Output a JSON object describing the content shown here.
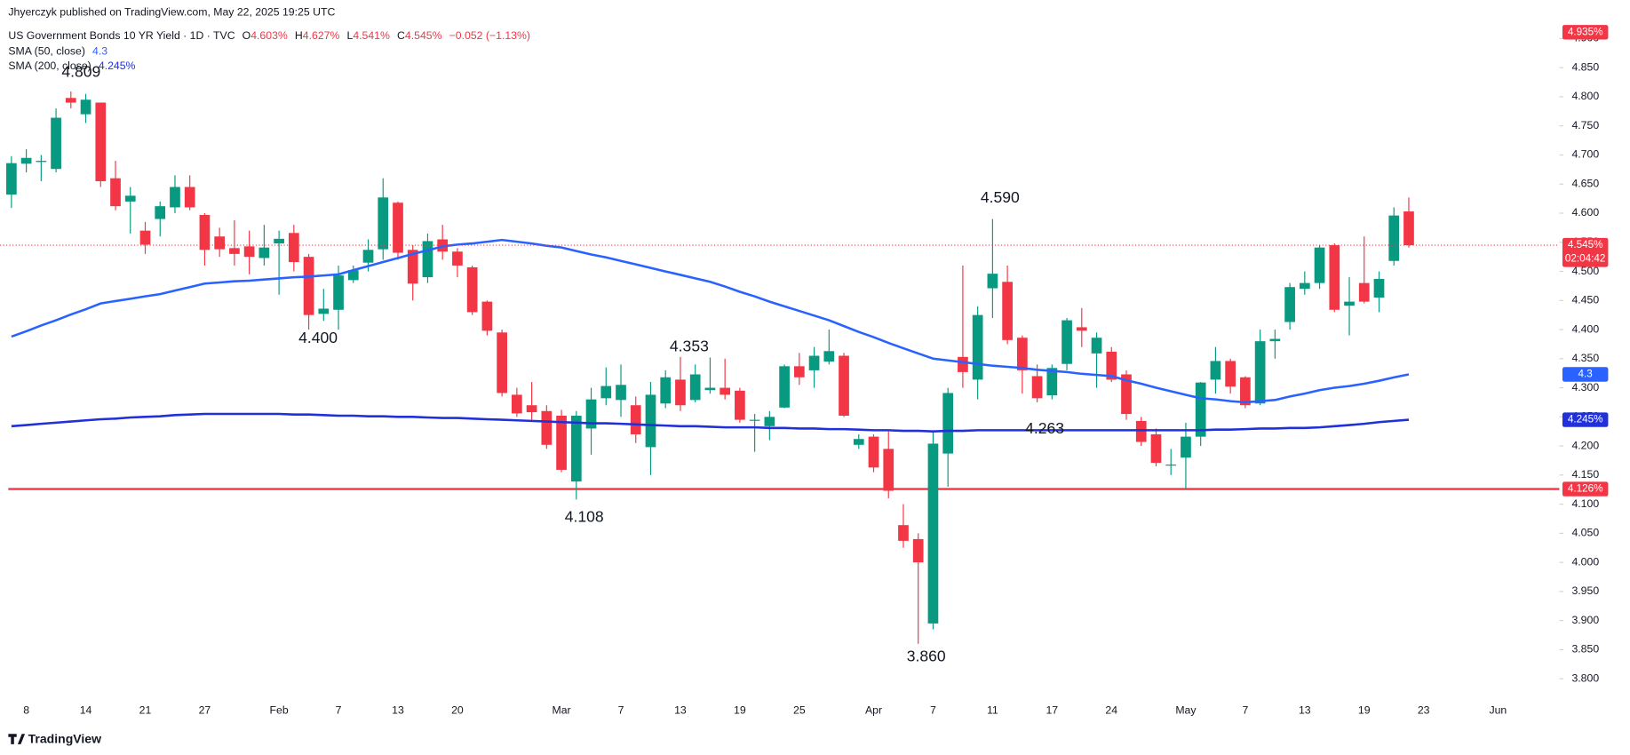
{
  "publisher": "Jhyerczyk published on TradingView.com, May 22, 2025 19:25 UTC",
  "brand": "TradingView",
  "chart_data": {
    "type": "candlestick",
    "title": "US Government Bonds 10 YR Yield · 1D · TVC",
    "ohlc_legend": [
      {
        "key": "O",
        "text": "4.603%"
      },
      {
        "key": "H",
        "text": "4.627%"
      },
      {
        "key": "L",
        "text": "4.541%"
      },
      {
        "key": "C",
        "text": "4.545%"
      }
    ],
    "change": "−0.052 (−1.13%)",
    "categories": [
      null,
      "8",
      null,
      null,
      null,
      "14",
      null,
      null,
      null,
      "21",
      null,
      null,
      null,
      "27",
      null,
      null,
      null,
      null,
      "Feb",
      null,
      null,
      null,
      "7",
      null,
      null,
      null,
      "13",
      null,
      null,
      null,
      "20",
      null,
      null,
      null,
      null,
      null,
      null,
      "Mar",
      null,
      null,
      null,
      "7",
      null,
      null,
      null,
      "13",
      null,
      null,
      null,
      "19",
      null,
      null,
      null,
      "25",
      null,
      null,
      null,
      null,
      "Apr",
      null,
      null,
      null,
      "7",
      null,
      null,
      null,
      "11",
      null,
      null,
      null,
      "17",
      null,
      null,
      null,
      "24",
      null,
      null,
      null,
      null,
      "May",
      null,
      null,
      null,
      "7",
      null,
      null,
      null,
      "13",
      null,
      null,
      null,
      "19",
      null,
      null,
      null,
      "23",
      null,
      null,
      null,
      null,
      "Jun"
    ],
    "open": [
      4.632,
      4.685,
      4.688,
      4.676,
      4.798,
      4.77,
      4.79,
      4.66,
      4.62,
      4.57,
      4.59,
      4.61,
      4.645,
      4.597,
      4.56,
      4.54,
      4.543,
      4.523,
      4.548,
      4.566,
      4.525,
      4.427,
      4.434,
      4.485,
      4.515,
      4.538,
      4.618,
      4.537,
      4.49,
      4.555,
      4.534,
      4.507,
      4.448,
      4.395,
      4.288,
      4.27,
      4.26,
      4.252,
      4.139,
      4.23,
      4.282,
      4.279,
      4.27,
      4.198,
      4.273,
      4.314,
      4.279,
      4.296,
      4.3,
      4.295,
      4.244,
      4.234,
      4.266,
      4.337,
      4.33,
      4.345,
      4.355,
      4.202,
      4.216,
      4.195,
      4.064,
      4.04,
      3.895,
      4.187,
      4.353,
      4.314,
      4.471,
      4.482,
      4.386,
      4.32,
      4.287,
      4.341,
      4.404,
      4.359,
      4.362,
      4.323,
      4.243,
      4.22,
      4.168,
      4.18,
      4.216,
      4.314,
      4.346,
      4.318,
      4.273,
      4.38,
      4.413,
      4.47,
      4.48,
      4.545,
      4.441,
      4.48,
      4.455,
      4.518,
      4.603,
      null,
      null,
      null,
      null,
      null,
      null
    ],
    "high": [
      4.698,
      4.71,
      4.7,
      4.78,
      4.809,
      4.805,
      4.79,
      4.69,
      4.645,
      4.585,
      4.62,
      4.665,
      4.665,
      4.6,
      4.575,
      4.588,
      4.57,
      4.58,
      4.57,
      4.58,
      4.53,
      4.47,
      4.51,
      4.51,
      4.555,
      4.66,
      4.62,
      4.545,
      4.565,
      4.58,
      4.54,
      4.51,
      4.45,
      4.4,
      4.3,
      4.31,
      4.27,
      4.262,
      4.26,
      4.3,
      4.335,
      4.34,
      4.285,
      4.31,
      4.33,
      4.353,
      4.34,
      4.352,
      4.35,
      4.3,
      4.255,
      4.26,
      4.34,
      4.36,
      4.37,
      4.4,
      4.36,
      4.22,
      4.22,
      4.225,
      4.1,
      4.05,
      4.225,
      4.3,
      4.51,
      4.44,
      4.59,
      4.51,
      4.39,
      4.34,
      4.34,
      4.42,
      4.437,
      4.395,
      4.37,
      4.33,
      4.25,
      4.23,
      4.195,
      4.24,
      4.31,
      4.37,
      4.35,
      4.32,
      4.4,
      4.4,
      4.48,
      4.5,
      4.545,
      4.548,
      4.49,
      4.56,
      4.5,
      4.61,
      4.627,
      null,
      null,
      null,
      null,
      null,
      null
    ],
    "low": [
      4.609,
      4.67,
      4.655,
      4.67,
      4.78,
      4.755,
      4.645,
      4.605,
      4.565,
      4.53,
      4.56,
      4.6,
      4.605,
      4.51,
      4.525,
      4.51,
      4.495,
      4.51,
      4.46,
      4.5,
      4.4,
      4.415,
      4.4,
      4.48,
      4.5,
      4.52,
      4.52,
      4.45,
      4.48,
      4.52,
      4.49,
      4.425,
      4.39,
      4.285,
      4.25,
      4.245,
      4.195,
      4.155,
      4.108,
      4.185,
      4.27,
      4.25,
      4.205,
      4.15,
      4.265,
      4.26,
      4.275,
      4.29,
      4.28,
      4.24,
      4.19,
      4.21,
      4.265,
      4.305,
      4.3,
      4.34,
      4.25,
      4.195,
      4.155,
      4.11,
      4.025,
      3.86,
      3.885,
      4.13,
      4.3,
      4.28,
      4.42,
      4.375,
      4.29,
      4.275,
      4.28,
      4.33,
      4.37,
      4.3,
      4.31,
      4.245,
      4.2,
      4.165,
      4.15,
      4.126,
      4.2,
      4.29,
      4.29,
      4.265,
      4.27,
      4.35,
      4.4,
      4.46,
      4.47,
      4.43,
      4.39,
      4.445,
      4.43,
      4.51,
      4.541,
      null,
      null,
      null,
      null,
      null,
      null
    ],
    "close": [
      4.686,
      4.695,
      4.69,
      4.764,
      4.79,
      4.795,
      4.655,
      4.612,
      4.63,
      4.546,
      4.612,
      4.645,
      4.61,
      4.537,
      4.538,
      4.53,
      4.525,
      4.541,
      4.556,
      4.516,
      4.425,
      4.436,
      4.493,
      4.502,
      4.537,
      4.627,
      4.532,
      4.479,
      4.552,
      4.534,
      4.51,
      4.43,
      4.398,
      4.291,
      4.256,
      4.258,
      4.202,
      4.159,
      4.252,
      4.28,
      4.303,
      4.305,
      4.22,
      4.288,
      4.318,
      4.27,
      4.323,
      4.3,
      4.288,
      4.245,
      4.245,
      4.25,
      4.337,
      4.318,
      4.355,
      4.363,
      4.252,
      4.212,
      4.163,
      4.123,
      4.037,
      4.0,
      4.204,
      4.291,
      4.327,
      4.425,
      4.496,
      4.382,
      4.33,
      4.282,
      4.334,
      4.416,
      4.398,
      4.386,
      4.314,
      4.255,
      4.207,
      4.171,
      4.168,
      4.216,
      4.309,
      4.346,
      4.302,
      4.27,
      4.38,
      4.384,
      4.473,
      4.48,
      4.541,
      4.434,
      4.448,
      4.448,
      4.487,
      4.596,
      4.545,
      null,
      null,
      null,
      null,
      null,
      null
    ],
    "last_close_label": "4.545%",
    "countdown": "02:04:42",
    "up_color": "#089981",
    "down_color": "#f23645",
    "series": [
      {
        "name": "SMA (50, close)",
        "color": "#2962ff",
        "last_label": "4.3",
        "values": [
          4.388,
          4.397,
          4.407,
          4.416,
          4.426,
          4.435,
          4.445,
          4.449,
          4.453,
          4.457,
          4.461,
          4.467,
          4.473,
          4.479,
          4.481,
          4.483,
          4.484,
          4.486,
          4.488,
          4.49,
          4.491,
          4.493,
          4.495,
          4.502,
          4.509,
          4.516,
          4.523,
          4.53,
          4.536,
          4.543,
          4.546,
          4.548,
          4.551,
          4.554,
          4.551,
          4.548,
          4.544,
          4.541,
          4.535,
          4.529,
          4.524,
          4.518,
          4.512,
          4.506,
          4.5,
          4.494,
          4.488,
          4.482,
          4.474,
          4.465,
          4.457,
          4.448,
          4.44,
          4.432,
          4.424,
          4.416,
          4.406,
          4.396,
          4.387,
          4.377,
          4.368,
          4.359,
          4.35,
          4.347,
          4.344,
          4.341,
          4.338,
          4.336,
          4.334,
          4.331,
          4.329,
          4.327,
          4.324,
          4.322,
          4.32,
          4.313,
          4.307,
          4.3,
          4.294,
          4.288,
          4.282,
          4.28,
          4.277,
          4.275,
          4.277,
          4.279,
          4.285,
          4.29,
          4.296,
          4.3,
          4.303,
          4.307,
          4.312,
          4.318,
          4.323,
          null,
          null,
          null,
          null,
          null,
          null
        ]
      },
      {
        "name": "SMA (200, close)",
        "color": "#2130d9",
        "last_label": "4.245%",
        "values": [
          4.234,
          4.236,
          4.238,
          4.24,
          4.242,
          4.244,
          4.246,
          4.247,
          4.249,
          4.25,
          4.251,
          4.253,
          4.254,
          4.255,
          4.255,
          4.255,
          4.255,
          4.255,
          4.255,
          4.254,
          4.254,
          4.253,
          4.252,
          4.252,
          4.251,
          4.251,
          4.25,
          4.25,
          4.249,
          4.248,
          4.248,
          4.247,
          4.246,
          4.245,
          4.244,
          4.243,
          4.242,
          4.241,
          4.24,
          4.239,
          4.239,
          4.238,
          4.237,
          4.236,
          4.235,
          4.234,
          4.234,
          4.233,
          4.232,
          4.232,
          4.232,
          4.231,
          4.231,
          4.23,
          4.23,
          4.229,
          4.229,
          4.228,
          4.227,
          4.227,
          4.226,
          4.226,
          4.225,
          4.226,
          4.226,
          4.227,
          4.227,
          4.227,
          4.227,
          4.227,
          4.227,
          4.227,
          4.227,
          4.227,
          4.227,
          4.227,
          4.227,
          4.227,
          4.227,
          4.227,
          4.227,
          4.228,
          4.228,
          4.229,
          4.23,
          4.23,
          4.231,
          4.231,
          4.232,
          4.234,
          4.236,
          4.238,
          4.241,
          4.243,
          4.245,
          null,
          null,
          null,
          null,
          null,
          null
        ]
      }
    ],
    "hlines": [
      {
        "value": 4.126,
        "label": "4.126%",
        "color": "#f23645"
      },
      {
        "value": 4.935,
        "label": "4.935%",
        "color": "#f23645"
      }
    ],
    "annotations": [
      "4.809",
      "4.400",
      "4.353",
      "4.108",
      "4.590",
      "4.263",
      "3.860"
    ],
    "ylim": [
      3.766,
      4.927
    ],
    "yticks": [
      {
        "value": 3.8,
        "label": "3.800"
      },
      {
        "value": 3.85,
        "label": "3.850"
      },
      {
        "value": 3.9,
        "label": "3.900"
      },
      {
        "value": 3.95,
        "label": "3.950"
      },
      {
        "value": 4.0,
        "label": "4.000"
      },
      {
        "value": 4.05,
        "label": "4.050"
      },
      {
        "value": 4.1,
        "label": "4.100"
      },
      {
        "value": 4.15,
        "label": "4.150"
      },
      {
        "value": 4.2,
        "label": "4.200"
      },
      {
        "value": 4.25,
        "label": "4.250"
      },
      {
        "value": 4.3,
        "label": "4.300"
      },
      {
        "value": 4.35,
        "label": "4.350"
      },
      {
        "value": 4.4,
        "label": "4.400"
      },
      {
        "value": 4.45,
        "label": "4.450"
      },
      {
        "value": 4.5,
        "label": "4.500"
      },
      {
        "value": 4.55,
        "label": "4.550"
      },
      {
        "value": 4.6,
        "label": "4.600"
      },
      {
        "value": 4.65,
        "label": "4.650"
      },
      {
        "value": 4.7,
        "label": "4.700"
      },
      {
        "value": 4.75,
        "label": "4.750"
      },
      {
        "value": 4.8,
        "label": "4.800"
      },
      {
        "value": 4.85,
        "label": "4.850"
      },
      {
        "value": 4.9,
        "label": "4.900"
      }
    ],
    "grid": false
  }
}
